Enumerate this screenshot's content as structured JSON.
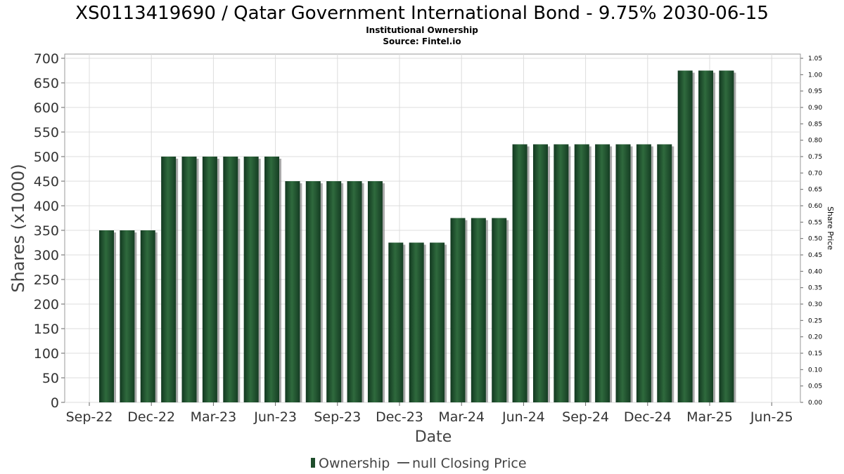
{
  "chart_data": {
    "type": "bar",
    "title": "XS0113419690 / Qatar Government International Bond - 9.75% 2030-06-15",
    "subtitle_lines": [
      "Institutional Ownership",
      "Source: Fintel.io"
    ],
    "xlabel": "Date",
    "ylabel": "Shares (x1000)",
    "y2label": "Share Price",
    "ylim": [
      0,
      700
    ],
    "y_ticks": [
      0,
      50,
      100,
      150,
      200,
      250,
      300,
      350,
      400,
      450,
      500,
      550,
      600,
      650,
      700
    ],
    "y2lim": [
      0,
      1.05
    ],
    "y2_ticks": [
      "0.00",
      "0.05",
      "0.10",
      "0.15",
      "0.20",
      "0.25",
      "0.30",
      "0.35",
      "0.40",
      "0.45",
      "0.50",
      "0.55",
      "0.60",
      "0.65",
      "0.70",
      "0.75",
      "0.80",
      "0.85",
      "0.90",
      "0.95",
      "1.00",
      "1.05"
    ],
    "x_tick_labels": [
      "Sep-22",
      "Dec-22",
      "Mar-23",
      "Jun-23",
      "Sep-23",
      "Dec-23",
      "Mar-24",
      "Jun-24",
      "Sep-24",
      "Dec-24",
      "Mar-25",
      "Jun-25"
    ],
    "grid": true,
    "series": [
      {
        "name": "Ownership",
        "color": "#1e4d2b",
        "values": [
          350,
          350,
          350,
          500,
          500,
          500,
          500,
          500,
          500,
          450,
          450,
          450,
          450,
          450,
          325,
          325,
          325,
          375,
          375,
          375,
          525,
          525,
          525,
          525,
          525,
          525,
          525,
          525,
          675,
          675,
          675
        ]
      },
      {
        "name": "null Closing Price",
        "color": "#555555",
        "values": []
      }
    ],
    "legend": {
      "placement": "bottom-center",
      "entries": [
        "Ownership",
        "null Closing Price"
      ]
    }
  }
}
